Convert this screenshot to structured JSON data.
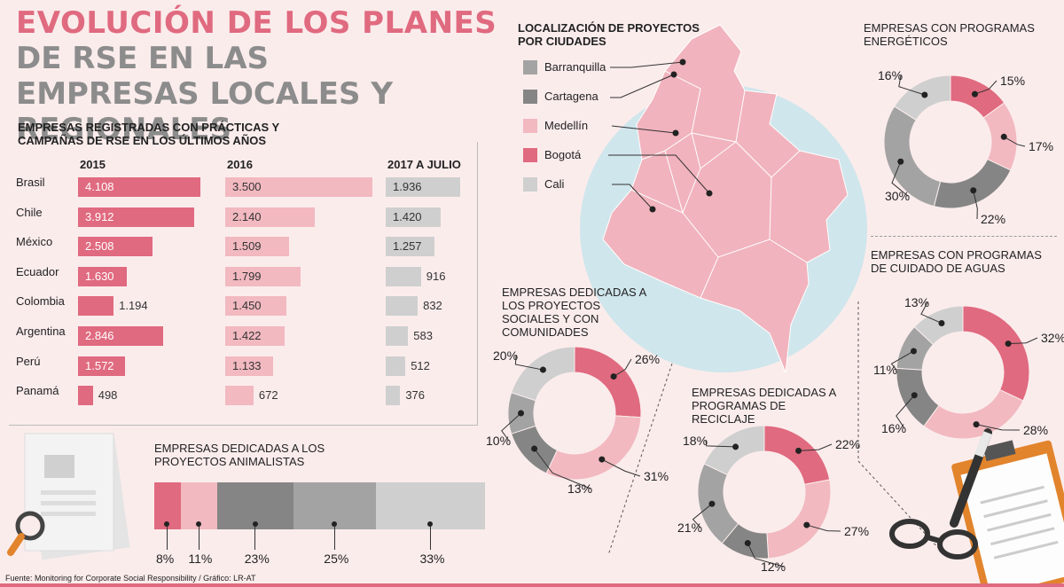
{
  "title": {
    "line1": "EVOLUCIÓN DE LOS PLANES",
    "line2": "DE RSE EN LAS EMPRESAS LOCALES Y REGIONALES"
  },
  "colors": {
    "dark_pink": "#e06a7f",
    "light_pink": "#f2b9c0",
    "dark_gray": "#858585",
    "mid_gray": "#a3a3a3",
    "light_gray": "#cfcfcf",
    "map_pink": "#f1b3bd",
    "sea_blue": "#cfe6ec"
  },
  "chart_data": [
    {
      "type": "bar",
      "title": "EMPRESAS REGISTRADAS CON PRÁCTICAS Y CAMPAÑAS DE RSE EN LOS ÚLTIMOS AÑOS",
      "categories": [
        "Brasil",
        "Chile",
        "México",
        "Ecuador",
        "Colombia",
        "Argentina",
        "Perú",
        "Panamá"
      ],
      "series": [
        {
          "name": "2015",
          "values": [
            "4.108",
            "3.912",
            "2.508",
            "1.630",
            "1.194",
            "2.846",
            "1.572",
            "498"
          ],
          "numeric": [
            4108,
            3912,
            2508,
            1630,
            1194,
            2846,
            1572,
            498
          ],
          "color": "#e06a7f"
        },
        {
          "name": "2016",
          "values": [
            "3.500",
            "2.140",
            "1.509",
            "1.799",
            "1.450",
            "1.422",
            "1.133",
            "672"
          ],
          "numeric": [
            3500,
            2140,
            1509,
            1799,
            1450,
            1422,
            1133,
            672
          ],
          "color": "#f2b9c0"
        },
        {
          "name": "2017 A JULIO",
          "values": [
            "1.936",
            "1.420",
            "1.257",
            "916",
            "832",
            "583",
            "512",
            "376"
          ],
          "numeric": [
            1936,
            1420,
            1257,
            916,
            832,
            583,
            512,
            376
          ],
          "color": "#cfcfcf"
        }
      ]
    },
    {
      "type": "bar",
      "title": "EMPRESAS DEDICADAS A LOS PROYECTOS ANIMALISTAS",
      "stacked": true,
      "values": [
        8,
        11,
        23,
        25,
        33
      ],
      "labels": [
        "8%",
        "11%",
        "23%",
        "25%",
        "33%"
      ],
      "colors": [
        "#e06a7f",
        "#f2b9c0",
        "#858585",
        "#a3a3a3",
        "#cfcfcf"
      ]
    },
    {
      "type": "pie",
      "title": "EMPRESAS CON PROGRAMAS ENERGÉTICOS",
      "values": [
        15,
        17,
        22,
        30,
        16
      ],
      "labels": [
        "15%",
        "17%",
        "22%",
        "30%",
        "16%"
      ],
      "colors": [
        "#e06a7f",
        "#f2b9c0",
        "#858585",
        "#a3a3a3",
        "#cfcfcf"
      ]
    },
    {
      "type": "pie",
      "title": "EMPRESAS CON PROGRAMAS DE CUIDADO DE AGUAS",
      "values": [
        32,
        28,
        16,
        11,
        13
      ],
      "labels": [
        "32%",
        "28%",
        "16%",
        "11%",
        "13%"
      ],
      "colors": [
        "#e06a7f",
        "#f2b9c0",
        "#858585",
        "#a3a3a3",
        "#cfcfcf"
      ]
    },
    {
      "type": "pie",
      "title": "EMPRESAS DEDICADAS A LOS PROYECTOS SOCIALES Y CON COMUNIDADES",
      "values": [
        26,
        31,
        13,
        10,
        20
      ],
      "labels": [
        "26%",
        "31%",
        "13%",
        "10%",
        "20%"
      ],
      "colors": [
        "#e06a7f",
        "#f2b9c0",
        "#858585",
        "#a3a3a3",
        "#cfcfcf"
      ]
    },
    {
      "type": "pie",
      "title": "EMPRESAS DEDICADAS A PROGRAMAS DE RECICLAJE",
      "values": [
        22,
        27,
        12,
        21,
        18
      ],
      "labels": [
        "22%",
        "27%",
        "12%",
        "21%",
        "18%"
      ],
      "colors": [
        "#e06a7f",
        "#f2b9c0",
        "#858585",
        "#a3a3a3",
        "#cfcfcf"
      ]
    }
  ],
  "map": {
    "title": "LOCALIZACIÓN DE PROYECTOS POR CIUDADES",
    "legend": [
      {
        "label": "Barranquilla",
        "color": "#a3a3a3"
      },
      {
        "label": "Cartagena",
        "color": "#858585"
      },
      {
        "label": "Medellín",
        "color": "#f2b9c0"
      },
      {
        "label": "Bogotá",
        "color": "#e06a7f"
      },
      {
        "label": "Cali",
        "color": "#cfcfcf"
      }
    ]
  },
  "source": "Fuente: Monitoring for Corporate Social Responsibility / Gráfico: LR-AT"
}
